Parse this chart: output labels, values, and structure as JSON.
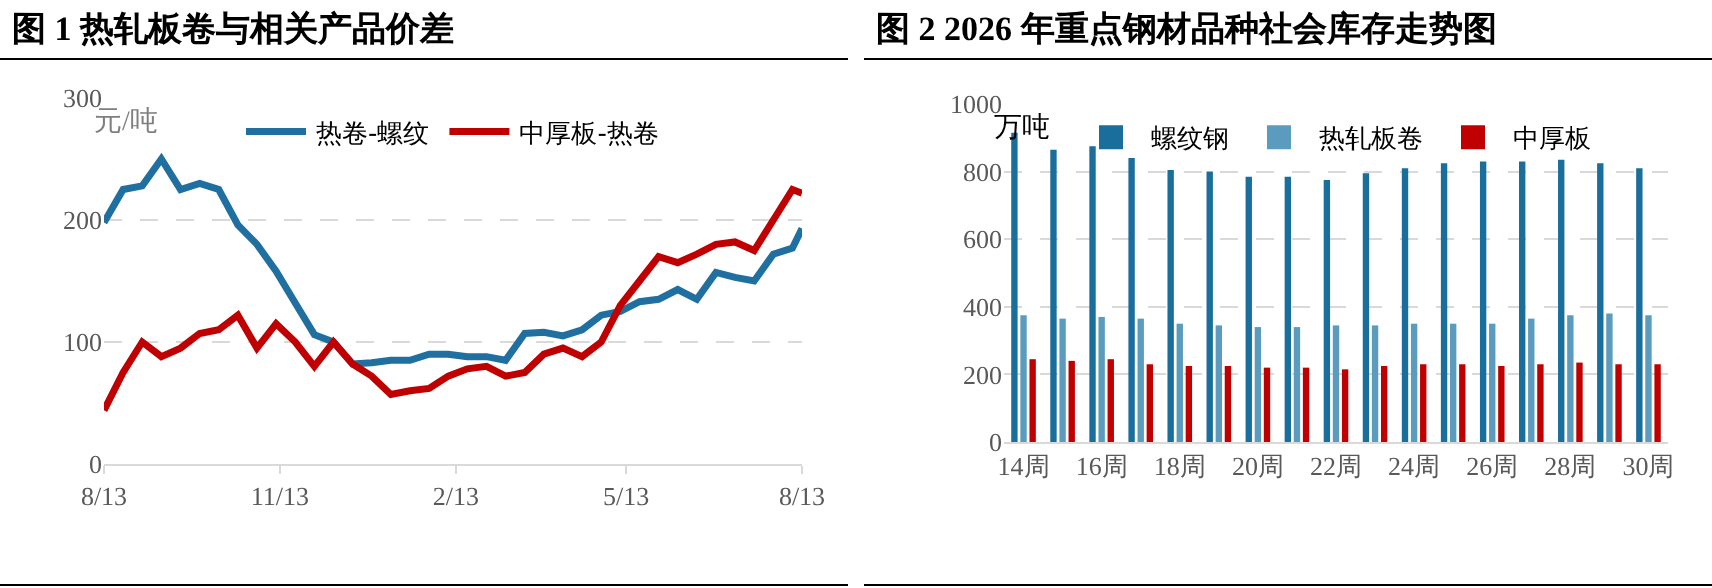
{
  "chart_data": [
    {
      "type": "line",
      "title": "图 1 热轧板卷与相关产品价差",
      "annotations": [
        "元/吨"
      ],
      "x": [
        "2025-08-13",
        "2025-08-23",
        "2025-09-02",
        "2025-09-12",
        "2025-09-22",
        "2025-10-02",
        "2025-10-12",
        "2025-10-22",
        "2025-11-01",
        "2025-11-11",
        "2025-11-21",
        "2025-12-01",
        "2025-12-11",
        "2025-12-21",
        "2025-12-31",
        "2026-01-10",
        "2026-01-20",
        "2026-01-30",
        "2026-02-09",
        "2026-02-19",
        "2026-03-01",
        "2026-03-11",
        "2026-03-21",
        "2026-03-31",
        "2026-04-10",
        "2026-04-20",
        "2026-04-30",
        "2026-05-10",
        "2026-05-20",
        "2026-05-30",
        "2026-06-09",
        "2026-06-19",
        "2026-06-29",
        "2026-07-09",
        "2026-07-19",
        "2026-07-29",
        "2026-08-08",
        "2026-08-13"
      ],
      "series": [
        {
          "name": "热卷-螺纹",
          "color": "#1f6fa0",
          "values": [
            198,
            225,
            228,
            250,
            225,
            230,
            225,
            196,
            180,
            158,
            132,
            106,
            100,
            82,
            83,
            85,
            85,
            90,
            90,
            88,
            88,
            85,
            107,
            108,
            105,
            110,
            122,
            125,
            133,
            135,
            143,
            135,
            157,
            153,
            150,
            172,
            177,
            193
          ]
        },
        {
          "name": "中厚板-热卷",
          "color": "#c00000",
          "values": [
            44,
            75,
            100,
            88,
            95,
            107,
            110,
            122,
            95,
            115,
            100,
            80,
            100,
            82,
            72,
            57,
            60,
            62,
            72,
            78,
            80,
            72,
            75,
            90,
            95,
            88,
            100,
            130,
            150,
            170,
            165,
            172,
            180,
            182,
            175,
            200,
            225,
            222
          ]
        }
      ],
      "xlim": [
        "2025-08-13",
        "2026-08-13"
      ],
      "xticks": [
        {
          "value": "2025-08-13",
          "label": "8/13"
        },
        {
          "value": "2025-11-13",
          "label": "11/13"
        },
        {
          "value": "2026-02-13",
          "label": "2/13"
        },
        {
          "value": "2026-05-13",
          "label": "5/13"
        },
        {
          "value": "2026-08-13",
          "label": "8/13"
        }
      ],
      "ylim": [
        0,
        300
      ],
      "yticks": [
        0,
        100,
        200,
        300
      ],
      "grid": "y",
      "legend": "top"
    },
    {
      "type": "bar",
      "title": "图 2 2026 年重点钢材品种社会库存走势图",
      "annotations": [
        "万吨"
      ],
      "categories": [
        "14周",
        null,
        "16周",
        null,
        "18周",
        null,
        "20周",
        null,
        "22周",
        null,
        "24周",
        null,
        "26周",
        null,
        "28周",
        null,
        "30周"
      ],
      "series": [
        {
          "name": "螺纹钢",
          "color": "#1a6e9c",
          "values": [
            915,
            865,
            875,
            840,
            805,
            800,
            785,
            785,
            775,
            795,
            810,
            825,
            830,
            830,
            835,
            825,
            810
          ]
        },
        {
          "name": "热轧板卷",
          "color": "#5b9bbd",
          "values": [
            375,
            365,
            370,
            365,
            350,
            345,
            340,
            340,
            345,
            345,
            350,
            350,
            350,
            365,
            375,
            380,
            375
          ]
        },
        {
          "name": "中厚板",
          "color": "#c00000",
          "values": [
            245,
            240,
            245,
            230,
            225,
            225,
            220,
            220,
            215,
            225,
            230,
            230,
            225,
            230,
            235,
            230,
            230
          ]
        }
      ],
      "ylim": [
        0,
        1000
      ],
      "yticks": [
        0,
        200,
        400,
        600,
        800,
        1000
      ],
      "grid": "y",
      "legend": "top"
    }
  ]
}
